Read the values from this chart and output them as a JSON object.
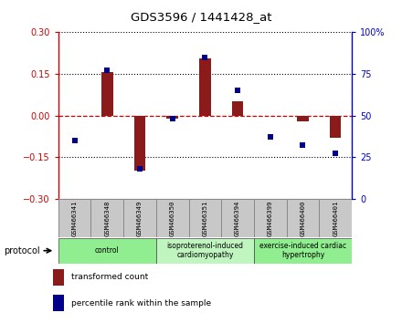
{
  "title": "GDS3596 / 1441428_at",
  "samples": [
    "GSM466341",
    "GSM466348",
    "GSM466349",
    "GSM466350",
    "GSM466351",
    "GSM466394",
    "GSM466399",
    "GSM466400",
    "GSM466401"
  ],
  "transformed_count": [
    0.0,
    0.155,
    -0.2,
    -0.01,
    0.205,
    0.05,
    0.0,
    -0.02,
    -0.08
  ],
  "percentile_rank": [
    35,
    77,
    18,
    48,
    85,
    65,
    37,
    32,
    27
  ],
  "ylim_left": [
    -0.3,
    0.3
  ],
  "ylim_right": [
    0,
    100
  ],
  "yticks_left": [
    -0.3,
    -0.15,
    0,
    0.15,
    0.3
  ],
  "yticks_right": [
    0,
    25,
    50,
    75,
    100
  ],
  "bar_color": "#8B1A1A",
  "dot_color": "#00008B",
  "zero_line_color": "#CC0000",
  "dotted_line_color": "#000000",
  "bg_color": "#FFFFFF",
  "sample_box_color": "#C8C8C8",
  "sample_box_edge": "#888888",
  "proto_control_color": "#90EE90",
  "proto_iso_color": "#C0F5C0",
  "proto_exercise_color": "#90EE90",
  "legend_bar_label": "transformed count",
  "legend_dot_label": "percentile rank within the sample",
  "left_axis_color": "#CC0000",
  "right_axis_color": "#0000CC"
}
